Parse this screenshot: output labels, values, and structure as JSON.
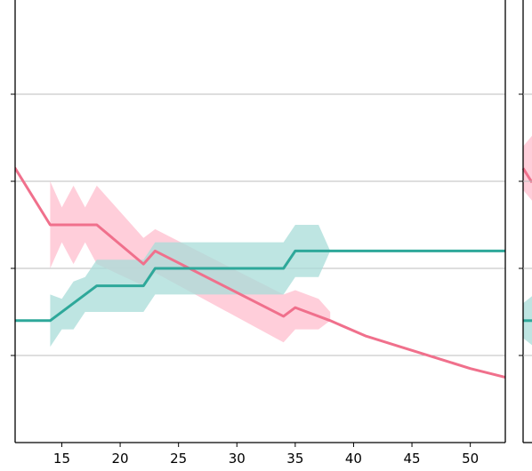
{
  "chart_data": {
    "type": "line",
    "title": "",
    "xlabel": "",
    "ylabel": "",
    "xlim": [
      11,
      53
    ],
    "xticks": [
      15,
      20,
      25,
      30,
      35,
      40,
      45,
      50
    ],
    "grid": {
      "horizontal": true,
      "vertical": false,
      "count": 4
    },
    "legend": "none",
    "colors": {
      "pink_line": "#f0708c",
      "pink_band": "#ffc6d3",
      "teal_line": "#2ea89a",
      "teal_band": "#a8dcd8",
      "grid": "#bdbdbd",
      "axis": "#000000"
    },
    "series": [
      {
        "x": [
          11,
          14,
          18,
          22,
          23,
          34,
          35,
          38,
          41,
          44,
          47,
          50,
          53
        ],
        "y": [
          0.63,
          0.5,
          0.5,
          0.41,
          0.44,
          0.29,
          0.31,
          0.28,
          0.245,
          0.22,
          0.195,
          0.17,
          0.15
        ],
        "band_x": [
          14,
          15,
          16,
          17,
          18,
          22,
          23,
          34,
          35,
          37,
          38
        ],
        "band_upper": [
          0.6,
          0.54,
          0.59,
          0.54,
          0.59,
          0.47,
          0.49,
          0.34,
          0.35,
          0.33,
          0.3
        ],
        "band_lower": [
          0.4,
          0.46,
          0.41,
          0.46,
          0.41,
          0.36,
          0.39,
          0.23,
          0.26,
          0.26,
          0.28
        ]
      },
      {
        "x": [
          11,
          14,
          18,
          22,
          23,
          34,
          35,
          53
        ],
        "y": [
          0.28,
          0.28,
          0.36,
          0.36,
          0.4,
          0.4,
          0.44,
          0.44
        ],
        "band_x": [
          14,
          15,
          16,
          17,
          18,
          22,
          23,
          34,
          35,
          37,
          38
        ],
        "band_upper": [
          0.34,
          0.33,
          0.37,
          0.38,
          0.42,
          0.42,
          0.46,
          0.46,
          0.5,
          0.5,
          0.44
        ],
        "band_lower": [
          0.22,
          0.26,
          0.26,
          0.3,
          0.3,
          0.3,
          0.34,
          0.34,
          0.38,
          0.38,
          0.44
        ]
      }
    ]
  },
  "right_panel": {
    "series": [
      {
        "y_at_edge": 0.63,
        "band_upper": 0.68,
        "band_lower": 0.58
      },
      {
        "y_at_edge": 0.28,
        "band_upper": 0.32,
        "band_lower": 0.24
      }
    ]
  }
}
